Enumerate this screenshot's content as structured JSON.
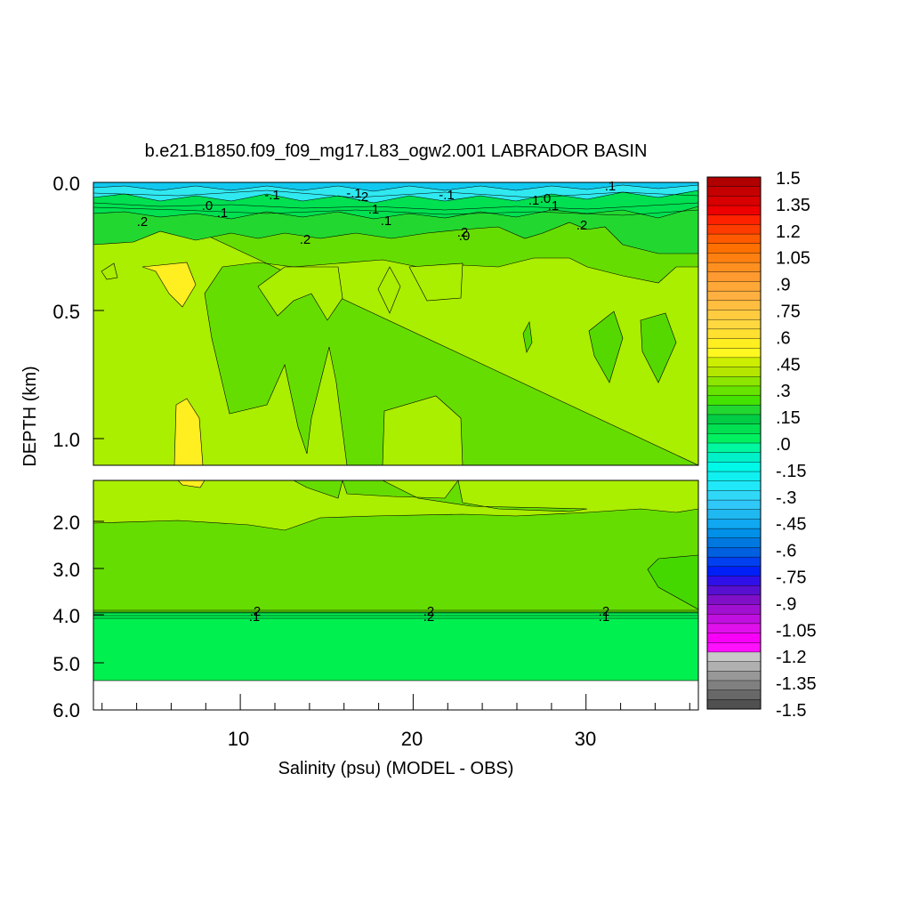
{
  "chart_data": {
    "type": "heatmap",
    "title": "b.e21.B1850.f09_f09_mg17.L83_ogw2.001 LABRADOR BASIN",
    "xlabel": "Salinity (psu) (MODEL - OBS)",
    "ylabel": "DEPTH (km)",
    "xlim": [
      1.5,
      36.5
    ],
    "x_ticks": [
      "10",
      "20",
      "30"
    ],
    "upper_panel": {
      "ylim": [
        0.0,
        1.1
      ],
      "y_ticks": [
        "0.0",
        "0.5",
        "1.0"
      ]
    },
    "lower_panel": {
      "ylim": [
        1.1,
        6.0
      ],
      "y_ticks": [
        "2.0",
        "3.0",
        "4.0",
        "5.0",
        "6.0"
      ]
    },
    "colorbar": {
      "levels": [
        "1.5",
        "1.35",
        "1.2",
        "1.05",
        ".9",
        ".75",
        ".6",
        ".45",
        ".3",
        ".15",
        ".0",
        "-.15",
        "-.3",
        "-.45",
        "-.6",
        "-.75",
        "-.9",
        "-1.05",
        "-1.2",
        "-1.35",
        "-1.5"
      ],
      "colors": [
        "#b00000",
        "#c40000",
        "#d80000",
        "#ee0000",
        "#ff2200",
        "#ff3c00",
        "#ff5a00",
        "#ff7000",
        "#ff8010",
        "#ff9020",
        "#ff9a30",
        "#ffa838",
        "#ffb040",
        "#ffbe40",
        "#ffcc40",
        "#ffd840",
        "#ffe030",
        "#ffee20",
        "#fff820",
        "#ccee00",
        "#b4e600",
        "#8ce600",
        "#66e400",
        "#44e200",
        "#22d830",
        "#00cc44",
        "#00e050",
        "#00f060",
        "#00f8a0",
        "#00f0c8",
        "#00f8e8",
        "#10f0f0",
        "#20e8f8",
        "#30d8f8",
        "#30c8f8",
        "#20b8f0",
        "#10a8f0",
        "#0090e8",
        "#0078e0",
        "#0060e0",
        "#0040f0",
        "#0020f8",
        "#3010e8",
        "#5810d0",
        "#8010c8",
        "#a010d0",
        "#c010e0",
        "#e010ec",
        "#f800f8",
        "#ff10ff",
        "#c8c8c8",
        "#b0b0b0",
        "#989898",
        "#808080",
        "#686868",
        "#505050"
      ]
    },
    "contour_labels": [
      "-.1",
      ".2",
      "-.1",
      ".0",
      ".1",
      ".2",
      ".2",
      ".0",
      ".1",
      ".1",
      ".0",
      ".1",
      ".1",
      ".2",
      ".2",
      ".2",
      "-.1",
      ".2",
      ".1",
      ".2",
      ".1",
      ".2",
      ".1"
    ],
    "regions": {
      "surface_cold": "#30e8f0",
      "surface_band": "#00d860",
      "upper_green": "#66dd00",
      "upper_yellowgreen": "#aaee00",
      "upper_yellow": "#ffee20",
      "deep_green": "#00f050",
      "no_data": "#ffffff"
    }
  }
}
